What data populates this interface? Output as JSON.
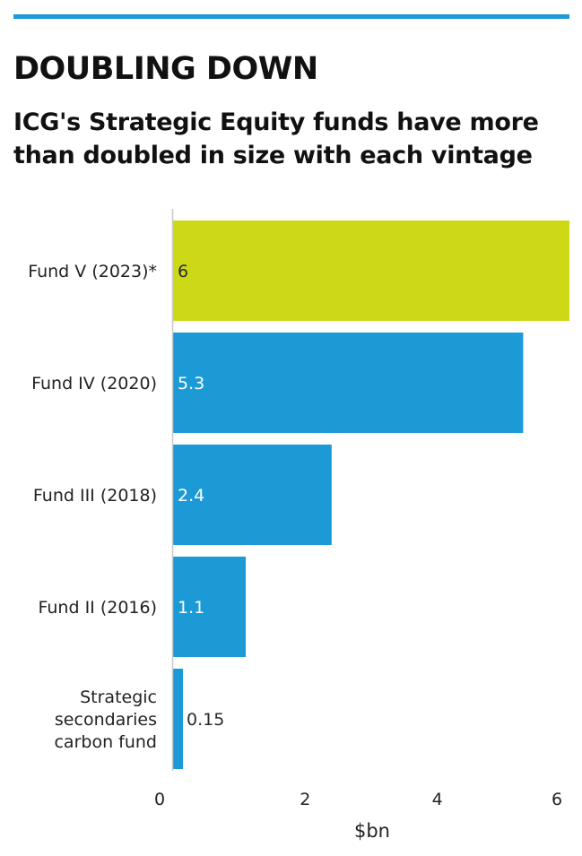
{
  "header": {
    "headline": "DOUBLING DOWN",
    "subhead": "ICG's Strategic Equity funds have more than doubled in size with each vintage"
  },
  "colors": {
    "rule": "#1b9ad6",
    "bar_default": "#1b9ad6",
    "bar_highlight": "#cdd917",
    "axis": "#c8c8c8"
  },
  "chart_data": {
    "type": "bar",
    "orientation": "horizontal",
    "categories": [
      [
        "Fund V (2023)*"
      ],
      [
        "Fund IV (2020)"
      ],
      [
        "Fund III (2018)"
      ],
      [
        "Fund II (2016)"
      ],
      [
        "Strategic",
        "secondaries",
        "carbon fund"
      ]
    ],
    "values": [
      6,
      5.3,
      2.4,
      1.1,
      0.15
    ],
    "value_labels": [
      "6",
      "5.3",
      "2.4",
      "1.1",
      "0.15"
    ],
    "highlight_index": 0,
    "xlabel": "$bn",
    "xlim": [
      0,
      6
    ],
    "xticks": [
      0,
      2,
      4,
      6
    ],
    "grid": false
  }
}
